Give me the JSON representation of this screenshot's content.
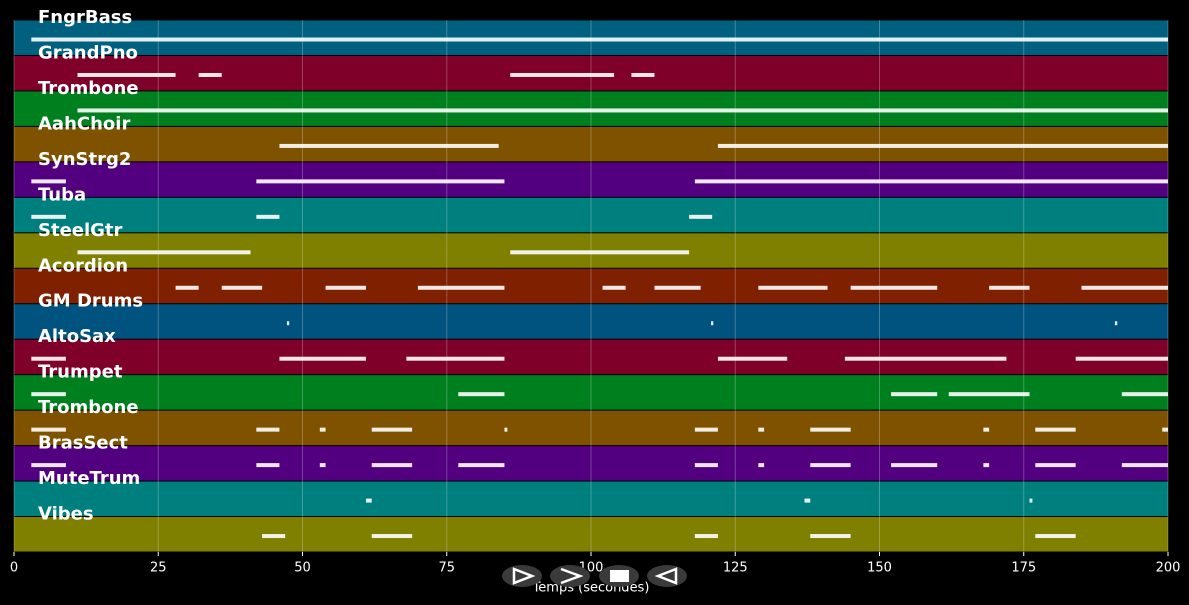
{
  "chart_data": {
    "type": "pianoroll",
    "xlabel": "Temps (secondes)",
    "xlim": [
      0,
      200
    ],
    "xticks": [
      0,
      25,
      50,
      75,
      100,
      125,
      150,
      175,
      200
    ],
    "grid": true,
    "tracks": [
      {
        "name": "FngrBass",
        "color": "#00607f",
        "segments": [
          [
            3,
            200
          ]
        ]
      },
      {
        "name": "GrandPno",
        "color": "#7f0029",
        "segments": [
          [
            11,
            28
          ],
          [
            32,
            36
          ],
          [
            86,
            104
          ],
          [
            107,
            111
          ]
        ]
      },
      {
        "name": "Trombone",
        "color": "#007f1e",
        "segments": [
          [
            11,
            200
          ]
        ]
      },
      {
        "name": "AahChoir",
        "color": "#7f5200",
        "segments": [
          [
            46,
            84
          ],
          [
            122,
            200
          ]
        ]
      },
      {
        "name": "SynStrg2",
        "color": "#52007f",
        "segments": [
          [
            3,
            9
          ],
          [
            42,
            85
          ],
          [
            118,
            200
          ]
        ]
      },
      {
        "name": "Tuba",
        "color": "#007f7f",
        "segments": [
          [
            3,
            9
          ],
          [
            42,
            46
          ],
          [
            117,
            121
          ]
        ]
      },
      {
        "name": "SteelGtr",
        "color": "#7f7f00",
        "segments": [
          [
            11,
            41
          ],
          [
            86,
            117
          ]
        ]
      },
      {
        "name": "Acordion",
        "color": "#7f2000",
        "segments": [
          [
            28,
            32
          ],
          [
            36,
            43
          ],
          [
            54,
            61
          ],
          [
            70,
            85
          ],
          [
            102,
            106
          ],
          [
            111,
            119
          ],
          [
            129,
            141
          ],
          [
            145,
            160
          ],
          [
            169,
            176
          ],
          [
            185,
            200
          ]
        ]
      },
      {
        "name": "GM Drums",
        "color": "#00527f",
        "segments": [
          [
            47.3,
            47.7
          ],
          [
            120.8,
            121.2
          ],
          [
            190.8,
            191.2
          ]
        ]
      },
      {
        "name": "AltoSax",
        "color": "#7f0029",
        "segments": [
          [
            3,
            9
          ],
          [
            46,
            61
          ],
          [
            68,
            85
          ],
          [
            122,
            134
          ],
          [
            144,
            172
          ],
          [
            184,
            200
          ]
        ]
      },
      {
        "name": "Trumpet",
        "color": "#007f1e",
        "segments": [
          [
            3,
            9
          ],
          [
            77,
            85
          ],
          [
            152,
            160
          ],
          [
            162,
            176
          ],
          [
            192,
            200
          ]
        ]
      },
      {
        "name": "Trombone",
        "color": "#7f5200",
        "segments": [
          [
            3,
            9
          ],
          [
            42,
            46
          ],
          [
            53,
            54
          ],
          [
            62,
            69
          ],
          [
            85,
            85.5
          ],
          [
            118,
            122
          ],
          [
            129,
            130
          ],
          [
            138,
            145
          ],
          [
            168,
            169
          ],
          [
            177,
            184
          ],
          [
            199,
            200
          ]
        ]
      },
      {
        "name": "BrasSect",
        "color": "#52007f",
        "segments": [
          [
            3,
            9
          ],
          [
            42,
            46
          ],
          [
            53,
            54
          ],
          [
            62,
            69
          ],
          [
            77,
            85
          ],
          [
            118,
            122
          ],
          [
            129,
            130
          ],
          [
            138,
            145
          ],
          [
            152,
            160
          ],
          [
            168,
            169
          ],
          [
            177,
            184
          ],
          [
            192,
            200
          ]
        ]
      },
      {
        "name": "MuteTrum",
        "color": "#007f7f",
        "segments": [
          [
            61,
            62
          ],
          [
            137,
            138
          ],
          [
            176,
            176.5
          ]
        ]
      },
      {
        "name": "Vibes",
        "color": "#7f7f00",
        "segments": [
          [
            43,
            47
          ],
          [
            62,
            69
          ],
          [
            118,
            122
          ],
          [
            138,
            145
          ],
          [
            177,
            184
          ]
        ]
      }
    ]
  }
}
